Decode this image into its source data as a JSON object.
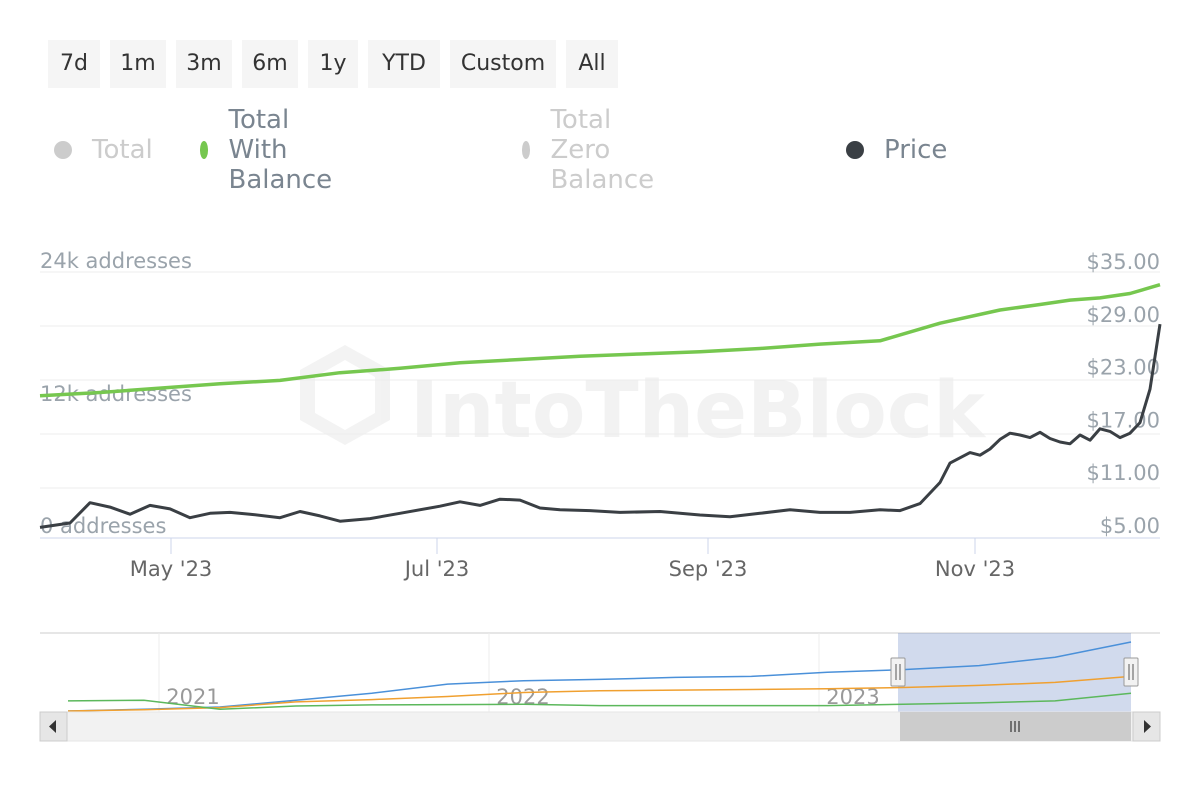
{
  "range_buttons": [
    "7d",
    "1m",
    "3m",
    "6m",
    "1y",
    "YTD",
    "Custom",
    "All"
  ],
  "legend": [
    {
      "label": "Total",
      "color": "#cccccc",
      "visible": false
    },
    {
      "label": "Total With Balance",
      "color": "#76c74f",
      "visible": true
    },
    {
      "label": "Total Zero Balance",
      "color": "#cccccc",
      "visible": false
    },
    {
      "label": "Price",
      "color": "#3a3f44",
      "visible": true
    }
  ],
  "watermark": "IntoTheBlock",
  "chart_data": {
    "type": "line",
    "x_ticks": [
      "May '23",
      "Jul '23",
      "Sep '23",
      "Nov '23"
    ],
    "left_axis": {
      "ticks": [
        "0 addresses",
        "12k addresses",
        "24k addresses"
      ]
    },
    "right_axis": {
      "ticks": [
        "$5.00",
        "$11.00",
        "$17.00",
        "$23.00",
        "$29.00",
        "$35.00"
      ],
      "ylim": [
        5,
        35
      ]
    },
    "series": [
      {
        "name": "Total With Balance",
        "axis": "left",
        "color": "#76c74f",
        "x": [
          0,
          6,
          12,
          18,
          24,
          30,
          36,
          42,
          48,
          54,
          60,
          66,
          72,
          78,
          84,
          90,
          96,
          100,
          103,
          106,
          109,
          112
        ],
        "values": [
          12200,
          12500,
          12900,
          13300,
          13600,
          14300,
          14700,
          15200,
          15500,
          15800,
          16000,
          16200,
          16500,
          16900,
          17200,
          18800,
          20000,
          20500,
          20900,
          21100,
          21500,
          22300
        ]
      },
      {
        "name": "Price",
        "axis": "right",
        "color": "#3a3f44",
        "x": [
          0,
          3,
          5,
          7,
          9,
          11,
          13,
          15,
          17,
          19,
          21,
          24,
          26,
          28,
          30,
          33,
          36,
          40,
          42,
          44,
          46,
          48,
          50,
          52,
          55,
          58,
          62,
          66,
          69,
          72,
          75,
          78,
          81,
          84,
          86,
          88,
          90,
          91,
          92,
          93,
          94,
          95,
          96,
          97,
          98,
          99,
          100,
          101,
          102,
          103,
          104,
          105,
          106,
          107,
          108,
          109,
          110,
          111,
          112
        ],
        "values": [
          5.3,
          5.8,
          8.1,
          7.6,
          6.8,
          7.8,
          7.4,
          6.4,
          6.9,
          7.0,
          6.8,
          6.4,
          7.1,
          6.6,
          6.0,
          6.3,
          6.9,
          7.7,
          8.2,
          7.8,
          8.5,
          8.4,
          7.5,
          7.3,
          7.2,
          7.0,
          7.1,
          6.7,
          6.5,
          6.9,
          7.3,
          7.0,
          7.0,
          7.3,
          7.2,
          8.0,
          10.4,
          12.6,
          13.2,
          13.8,
          13.5,
          14.2,
          15.3,
          16.0,
          15.8,
          15.5,
          16.1,
          15.4,
          15.0,
          14.8,
          15.8,
          15.2,
          16.5,
          16.2,
          15.5,
          16.0,
          17.2,
          21.0,
          28.4
        ]
      }
    ]
  },
  "navigator": {
    "labels": [
      "2021",
      "2022",
      "2023"
    ],
    "scroll_left_icon": "arrow-left-icon",
    "scroll_right_icon": "arrow-right-icon",
    "thumb_icon": "grip-icon",
    "series": [
      {
        "name": "Total",
        "color": "#4a90d9",
        "values": [
          0,
          0.5,
          1.2,
          3.2,
          5.3,
          8.0,
          9.0,
          9.4,
          10.0,
          10.3,
          11.5,
          12.3,
          13.5,
          16.0,
          20.5
        ]
      },
      {
        "name": "Total With Balance",
        "color": "#f0a030",
        "values": [
          0,
          0.4,
          1.0,
          2.7,
          3.4,
          4.3,
          5.5,
          6.0,
          6.2,
          6.4,
          6.6,
          7.0,
          7.6,
          8.5,
          10.3
        ]
      },
      {
        "name": "Total Zero Balance",
        "color": "#5cb85c",
        "values": [
          3.0,
          3.2,
          0.5,
          1.5,
          1.8,
          1.9,
          2.0,
          1.6,
          1.6,
          1.6,
          1.6,
          2.0,
          2.4,
          3.0,
          5.3
        ]
      }
    ]
  }
}
